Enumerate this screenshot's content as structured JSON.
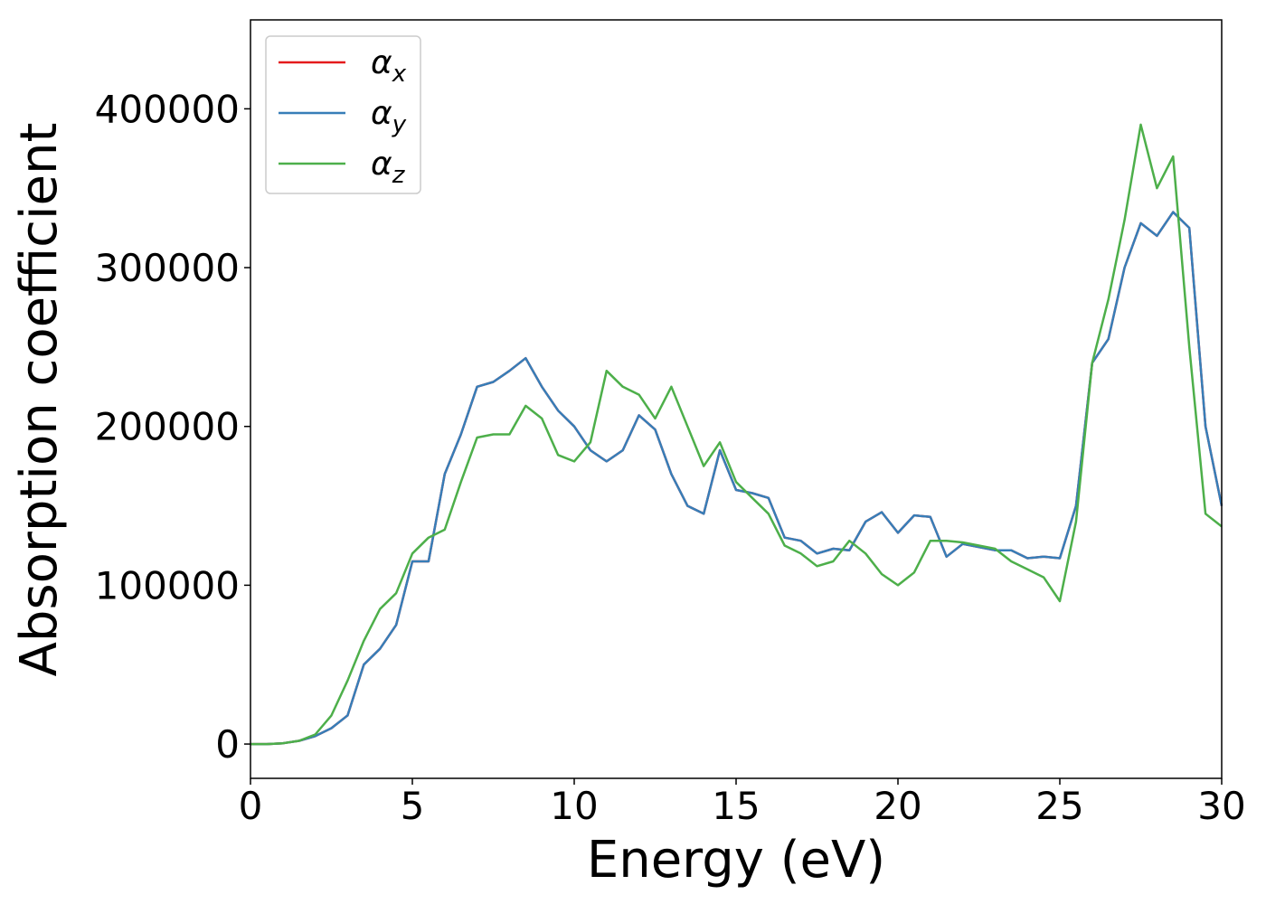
{
  "chart_data": {
    "type": "line",
    "xlabel": "Energy (eV)",
    "ylabel": "Absorption coefficient",
    "x": [
      0,
      0.5,
      1,
      1.5,
      2,
      2.5,
      3,
      3.5,
      4,
      4.5,
      5,
      5.5,
      6,
      6.5,
      7,
      7.5,
      8,
      8.5,
      9,
      9.5,
      10,
      10.5,
      11,
      11.5,
      12,
      12.5,
      13,
      13.5,
      14,
      14.5,
      15,
      15.5,
      16,
      16.5,
      17,
      17.5,
      18,
      18.5,
      19,
      19.5,
      20,
      20.5,
      21,
      21.5,
      22,
      22.5,
      23,
      23.5,
      24,
      24.5,
      25,
      25.5,
      26,
      26.5,
      27,
      27.5,
      28,
      28.5,
      29,
      29.5,
      30
    ],
    "series": [
      {
        "name": "αx",
        "color": "#e41a1c",
        "values": [
          0,
          0,
          500,
          2000,
          5000,
          10000,
          18000,
          50000,
          60000,
          75000,
          115000,
          115000,
          170000,
          195000,
          225000,
          228000,
          235000,
          243000,
          225000,
          210000,
          200000,
          185000,
          178000,
          185000,
          207000,
          198000,
          170000,
          150000,
          145000,
          185000,
          160000,
          158000,
          155000,
          130000,
          128000,
          120000,
          123000,
          122000,
          140000,
          146000,
          133000,
          144000,
          143000,
          118000,
          126000,
          124000,
          122000,
          122000,
          117000,
          118000,
          117000,
          150000,
          240000,
          255000,
          300000,
          328000,
          320000,
          335000,
          325000,
          200000,
          150000
        ]
      },
      {
        "name": "αy",
        "color": "#377eb8",
        "values": [
          0,
          0,
          500,
          2000,
          5000,
          10000,
          18000,
          50000,
          60000,
          75000,
          115000,
          115000,
          170000,
          195000,
          225000,
          228000,
          235000,
          243000,
          225000,
          210000,
          200000,
          185000,
          178000,
          185000,
          207000,
          198000,
          170000,
          150000,
          145000,
          185000,
          160000,
          158000,
          155000,
          130000,
          128000,
          120000,
          123000,
          122000,
          140000,
          146000,
          133000,
          144000,
          143000,
          118000,
          126000,
          124000,
          122000,
          122000,
          117000,
          118000,
          117000,
          150000,
          240000,
          255000,
          300000,
          328000,
          320000,
          335000,
          325000,
          200000,
          150000
        ]
      },
      {
        "name": "αz",
        "color": "#4daf4a",
        "values": [
          0,
          0,
          500,
          2000,
          6000,
          18000,
          40000,
          65000,
          85000,
          95000,
          120000,
          130000,
          135000,
          165000,
          193000,
          195000,
          195000,
          213000,
          205000,
          182000,
          178000,
          190000,
          235000,
          225000,
          220000,
          205000,
          225000,
          200000,
          175000,
          190000,
          165000,
          155000,
          145000,
          125000,
          120000,
          112000,
          115000,
          128000,
          120000,
          107000,
          100000,
          108000,
          128000,
          128000,
          127000,
          125000,
          123000,
          115000,
          110000,
          105000,
          90000,
          140000,
          240000,
          280000,
          330000,
          390000,
          350000,
          370000,
          250000,
          145000,
          137000
        ]
      }
    ],
    "xlim": [
      0,
      30
    ],
    "xticks": [
      0,
      5,
      10,
      15,
      20,
      25,
      30
    ],
    "ylim": [
      -21600,
      456000
    ],
    "yticks": [
      0,
      100000,
      200000,
      300000,
      400000
    ],
    "legend": "upper left"
  }
}
